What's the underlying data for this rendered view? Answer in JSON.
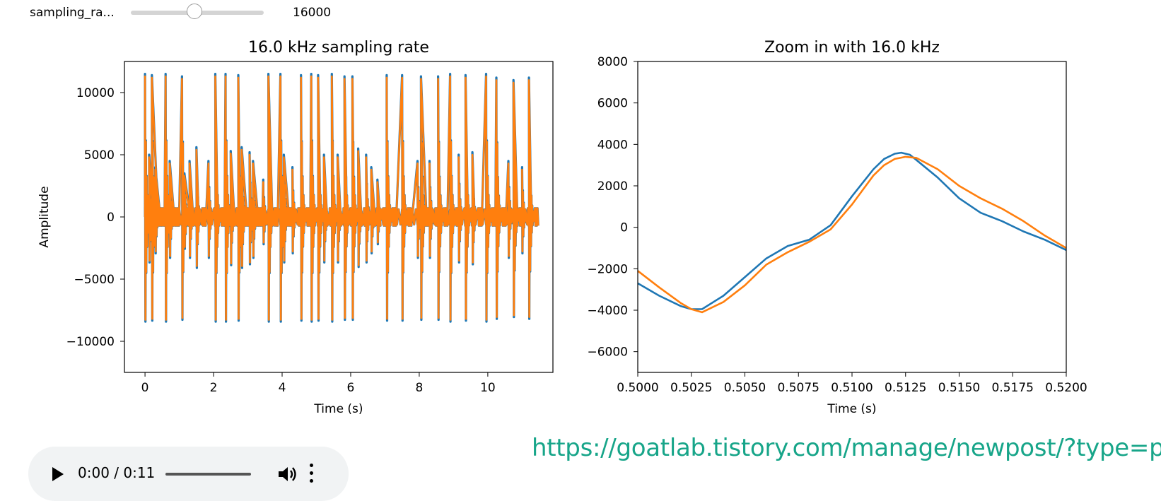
{
  "slider": {
    "label": "sampling_ra...",
    "value": "16000",
    "min": 1000,
    "max": 48000,
    "current": 16000
  },
  "chart_data": [
    {
      "type": "line",
      "title": "16.0 kHz sampling rate",
      "xlabel": "Time (s)",
      "ylabel": "Amplitude",
      "xlim": [
        -0.6,
        11.9
      ],
      "ylim": [
        -12500,
        12500
      ],
      "xticks": [
        0,
        2,
        4,
        6,
        8,
        10
      ],
      "xtick_labels": [
        "0",
        "2",
        "4",
        "6",
        "8",
        "10"
      ],
      "yticks": [
        10000,
        5000,
        0,
        -5000,
        -10000
      ],
      "ytick_labels": [
        "10000",
        "5000",
        "0",
        "−5000",
        "−10000"
      ],
      "grid": false,
      "series": [
        {
          "color": "#1f77b4",
          "x": [
            0,
            0.12,
            0.2,
            0.3,
            0.6,
            0.72,
            1.08,
            1.15,
            1.3,
            1.5,
            1.85,
            2.05,
            2.35,
            2.5,
            2.72,
            2.82,
            3.05,
            3.15,
            3.45,
            3.6,
            3.95,
            4.05,
            4.3,
            4.55,
            4.85,
            5.05,
            5.22,
            5.45,
            5.62,
            5.82,
            6.05,
            6.22,
            6.45,
            6.6,
            6.78,
            7.05,
            7.5,
            7.95,
            8.05,
            8.3,
            8.55,
            8.9,
            9.15,
            9.35,
            9.55,
            9.95,
            10.25,
            10.6,
            10.75,
            11.0,
            11.2
          ],
          "peaks": [
            11500,
            5000,
            11400,
            4000,
            11500,
            4500,
            11300,
            3500,
            4500,
            5600,
            4500,
            11500,
            11500,
            5300,
            11400,
            5600,
            5200,
            4500,
            3000,
            11500,
            11500,
            5000,
            4000,
            11400,
            11500,
            11400,
            5000,
            11500,
            5000,
            11300,
            11300,
            5500,
            5000,
            4000,
            3000,
            11400,
            11400,
            4500,
            11300,
            4500,
            11300,
            11500,
            5000,
            11400,
            5200,
            11500,
            11200,
            4500,
            11000,
            4000,
            11200
          ]
        },
        {
          "color": "#ff7f0e",
          "x": [
            0,
            0.12,
            0.2,
            0.3,
            0.6,
            0.72,
            1.08,
            1.15,
            1.3,
            1.5,
            1.85,
            2.05,
            2.35,
            2.5,
            2.72,
            2.82,
            3.05,
            3.15,
            3.45,
            3.6,
            3.95,
            4.05,
            4.3,
            4.55,
            4.85,
            5.05,
            5.22,
            5.45,
            5.62,
            5.82,
            6.05,
            6.22,
            6.45,
            6.6,
            6.78,
            7.05,
            7.5,
            7.95,
            8.05,
            8.3,
            8.55,
            8.9,
            9.15,
            9.35,
            9.55,
            9.95,
            10.25,
            10.6,
            10.75,
            11.0,
            11.2
          ],
          "peaks": [
            11300,
            4800,
            11200,
            3800,
            11300,
            4300,
            11100,
            3300,
            4300,
            5400,
            4300,
            11300,
            11300,
            5100,
            11200,
            5400,
            5000,
            4300,
            2800,
            11300,
            11300,
            4800,
            3800,
            11200,
            11300,
            11200,
            4800,
            11300,
            4800,
            11100,
            11100,
            5300,
            4800,
            3800,
            2800,
            11200,
            11200,
            4300,
            11100,
            4300,
            11100,
            11300,
            4800,
            11200,
            5000,
            11300,
            11000,
            4300,
            10800,
            3800,
            11000
          ]
        }
      ]
    },
    {
      "type": "line",
      "title": "Zoom in with 16.0 kHz",
      "xlabel": "Time (s)",
      "ylabel": "",
      "xlim": [
        0.5,
        0.52
      ],
      "ylim": [
        -7000,
        8000
      ],
      "xticks": [
        0.5,
        0.5025,
        0.505,
        0.5075,
        0.51,
        0.5125,
        0.515,
        0.5175,
        0.52
      ],
      "xtick_labels": [
        "0.5000",
        "0.5025",
        "0.5050",
        "0.5075",
        "0.5100",
        "0.5125",
        "0.5150",
        "0.5175",
        "0.5200"
      ],
      "yticks": [
        8000,
        6000,
        4000,
        2000,
        0,
        -2000,
        -4000,
        -6000
      ],
      "ytick_labels": [
        "8000",
        "6000",
        "4000",
        "2000",
        "0",
        "−2000",
        "−4000",
        "−6000"
      ],
      "grid": false,
      "series": [
        {
          "color": "#1f77b4",
          "x": [
            0.5,
            0.501,
            0.502,
            0.5025,
            0.503,
            0.504,
            0.505,
            0.506,
            0.507,
            0.508,
            0.509,
            0.51,
            0.511,
            0.5115,
            0.512,
            0.5123,
            0.5127,
            0.513,
            0.514,
            0.515,
            0.516,
            0.517,
            0.518,
            0.519,
            0.52
          ],
          "y": [
            -2700,
            -3300,
            -3800,
            -3950,
            -3950,
            -3300,
            -2400,
            -1500,
            -900,
            -600,
            100,
            1500,
            2800,
            3300,
            3550,
            3600,
            3500,
            3250,
            2400,
            1400,
            700,
            300,
            -200,
            -600,
            -1100
          ]
        },
        {
          "color": "#ff7f0e",
          "x": [
            0.5,
            0.501,
            0.502,
            0.5025,
            0.503,
            0.504,
            0.505,
            0.506,
            0.507,
            0.508,
            0.509,
            0.51,
            0.511,
            0.5115,
            0.512,
            0.5125,
            0.513,
            0.514,
            0.515,
            0.516,
            0.517,
            0.518,
            0.519,
            0.52
          ],
          "y": [
            -2100,
            -2900,
            -3650,
            -3950,
            -4100,
            -3600,
            -2800,
            -1800,
            -1200,
            -700,
            -100,
            1100,
            2500,
            3000,
            3300,
            3400,
            3350,
            2800,
            2000,
            1400,
            900,
            300,
            -400,
            -1000
          ]
        }
      ]
    }
  ],
  "watermark": "https://goatlab.tistory.com/manage/newpost/?type=p",
  "audio": {
    "time": "0:00 / 0:11"
  }
}
